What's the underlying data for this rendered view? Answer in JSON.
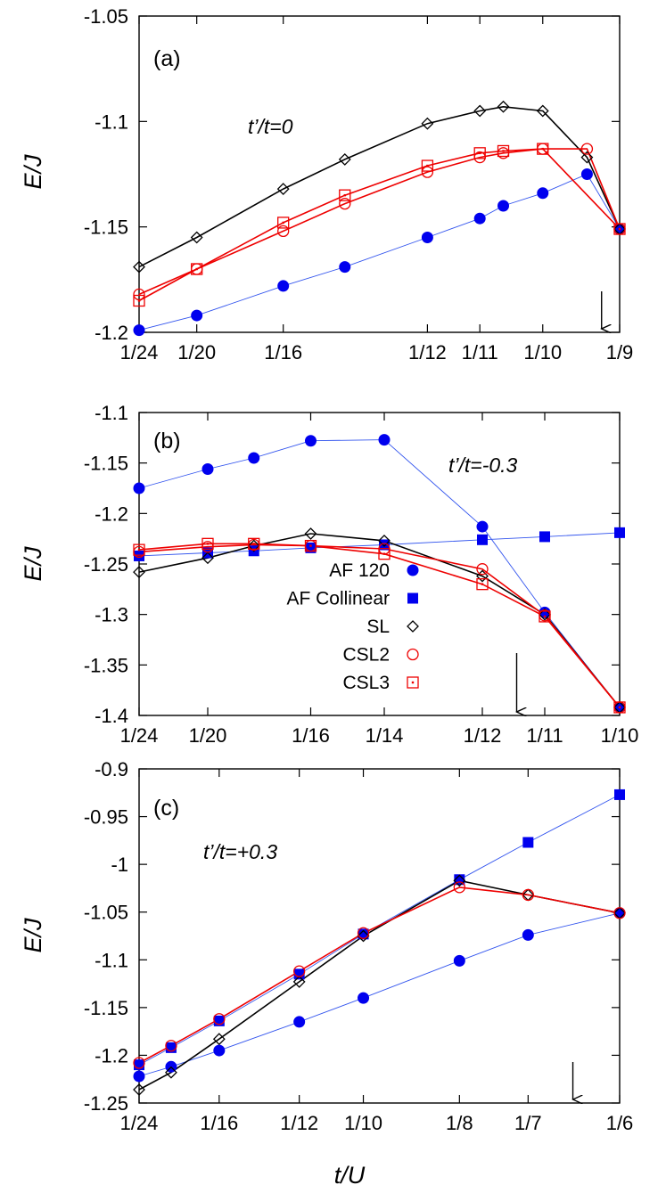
{
  "colors": {
    "af120": "#0000ee",
    "afcol": "#0000ee",
    "sl": "#000000",
    "csl2": "#ee0000",
    "csl3": "#ee0000"
  },
  "legend": [
    {
      "key": "af120",
      "label": "AF 120",
      "marker": "circle-filled"
    },
    {
      "key": "afcol",
      "label": "AF Collinear",
      "marker": "square-filled"
    },
    {
      "key": "sl",
      "label": "SL",
      "marker": "diamond-open"
    },
    {
      "key": "csl2",
      "label": "CSL2",
      "marker": "circle-open"
    },
    {
      "key": "csl3",
      "label": "CSL3",
      "marker": "square-dot"
    }
  ],
  "xlabel": "t/U",
  "chart_data": [
    {
      "type": "line",
      "panel": "(a)",
      "annotation": "t’/t=0",
      "ylabel": "E/J",
      "xlim": [
        0.041667,
        0.111111
      ],
      "ylim": [
        -1.2,
        -1.05
      ],
      "yticks": [
        "-1.2",
        "-1.15",
        "-1.1",
        "-1.05"
      ],
      "ytick_values": [
        -1.2,
        -1.15,
        -1.1,
        -1.05
      ],
      "xticks": [
        "1/24",
        "1/20",
        "1/16",
        "1/12",
        "1/11",
        "1/10",
        "1/9"
      ],
      "xtick_values": [
        0.041667,
        0.05,
        0.0625,
        0.083333,
        0.090909,
        0.1,
        0.111111
      ],
      "arrow_x": 0.1085,
      "series": [
        {
          "key": "af120",
          "x": [
            0.041667,
            0.05,
            0.0625,
            0.0714,
            0.083333,
            0.090909,
            0.0943,
            0.1,
            0.1064,
            0.111111
          ],
          "values": [
            -1.199,
            -1.192,
            -1.178,
            -1.169,
            -1.155,
            -1.146,
            -1.14,
            -1.134,
            -1.125,
            -1.151
          ]
        },
        {
          "key": "sl",
          "x": [
            0.041667,
            0.05,
            0.0625,
            0.0714,
            0.083333,
            0.090909,
            0.0943,
            0.1,
            0.1064,
            0.111111
          ],
          "values": [
            -1.169,
            -1.155,
            -1.132,
            -1.118,
            -1.101,
            -1.095,
            -1.093,
            -1.095,
            -1.117,
            -1.151
          ]
        },
        {
          "key": "csl2",
          "x": [
            0.041667,
            0.05,
            0.0625,
            0.0714,
            0.083333,
            0.090909,
            0.0943,
            0.1,
            0.1064,
            0.111111
          ],
          "values": [
            -1.182,
            -1.17,
            -1.152,
            -1.139,
            -1.124,
            -1.117,
            -1.115,
            -1.113,
            -1.113,
            -1.151
          ]
        },
        {
          "key": "csl3",
          "x": [
            0.041667,
            0.05,
            0.0625,
            0.0714,
            0.083333,
            0.090909,
            0.0943,
            0.1,
            0.111111
          ],
          "values": [
            -1.185,
            -1.17,
            -1.148,
            -1.135,
            -1.121,
            -1.115,
            -1.114,
            -1.113,
            -1.151
          ]
        }
      ]
    },
    {
      "type": "line",
      "panel": "(b)",
      "annotation": "t’/t=-0.3",
      "ylabel": "E/J",
      "xlim": [
        0.041667,
        0.1
      ],
      "ylim": [
        -1.4,
        -1.1
      ],
      "yticks": [
        "-1.4",
        "-1.35",
        "-1.3",
        "-1.25",
        "-1.2",
        "-1.15",
        "-1.1"
      ],
      "ytick_values": [
        -1.4,
        -1.35,
        -1.3,
        -1.25,
        -1.2,
        -1.15,
        -1.1
      ],
      "xticks": [
        "1/24",
        "1/20",
        "1/16",
        "1/14",
        "1/12",
        "1/11",
        "1/10"
      ],
      "xtick_values": [
        0.041667,
        0.05,
        0.0625,
        0.071429,
        0.083333,
        0.090909,
        0.1
      ],
      "arrow_x": 0.0875,
      "legend_position": "center-left",
      "series": [
        {
          "key": "af120",
          "x": [
            0.041667,
            0.05,
            0.0556,
            0.0625,
            0.071429,
            0.083333,
            0.090909,
            0.1
          ],
          "values": [
            -1.175,
            -1.156,
            -1.145,
            -1.128,
            -1.127,
            -1.213,
            -1.298,
            -1.392
          ]
        },
        {
          "key": "afcol",
          "x": [
            0.041667,
            0.05,
            0.0556,
            0.0625,
            0.071429,
            0.083333,
            0.090909,
            0.1
          ],
          "values": [
            -1.242,
            -1.239,
            -1.237,
            -1.234,
            -1.231,
            -1.226,
            -1.223,
            -1.219
          ]
        },
        {
          "key": "sl",
          "x": [
            0.041667,
            0.05,
            0.0556,
            0.0625,
            0.071429,
            0.083333,
            0.090909,
            0.1
          ],
          "values": [
            -1.258,
            -1.244,
            -1.232,
            -1.22,
            -1.227,
            -1.262,
            -1.3,
            -1.392
          ]
        },
        {
          "key": "csl2",
          "x": [
            0.041667,
            0.05,
            0.0556,
            0.0625,
            0.071429,
            0.083333,
            0.090909,
            0.1
          ],
          "values": [
            -1.238,
            -1.233,
            -1.231,
            -1.232,
            -1.235,
            -1.255,
            -1.301,
            -1.392
          ]
        },
        {
          "key": "csl3",
          "x": [
            0.041667,
            0.05,
            0.0556,
            0.0625,
            0.071429,
            0.083333,
            0.090909,
            0.1
          ],
          "values": [
            -1.236,
            -1.23,
            -1.23,
            -1.232,
            -1.24,
            -1.27,
            -1.302,
            -1.392
          ]
        }
      ]
    },
    {
      "type": "line",
      "panel": "(c)",
      "annotation": "t’/t=+0.3",
      "ylabel": "E/J",
      "xlim": [
        0.041667,
        0.166667
      ],
      "ylim": [
        -1.25,
        -0.9
      ],
      "yticks": [
        "-1.25",
        "-1.2",
        "-1.15",
        "-1.1",
        "-1.05",
        "-1",
        "-0.95",
        "-0.9"
      ],
      "ytick_values": [
        -1.25,
        -1.2,
        -1.15,
        -1.1,
        -1.05,
        -1.0,
        -0.95,
        -0.9
      ],
      "xticks": [
        "1/24",
        "1/16",
        "1/12",
        "1/10",
        "1/8",
        "1/7",
        "1/6"
      ],
      "xtick_values": [
        0.041667,
        0.0625,
        0.083333,
        0.1,
        0.125,
        0.142857,
        0.166667
      ],
      "arrow_x": 0.1545,
      "series": [
        {
          "key": "af120",
          "x": [
            0.041667,
            0.05,
            0.0625,
            0.083333,
            0.1,
            0.125,
            0.142857,
            0.166667
          ],
          "values": [
            -1.222,
            -1.212,
            -1.195,
            -1.165,
            -1.14,
            -1.101,
            -1.074,
            -1.051
          ]
        },
        {
          "key": "afcol",
          "x": [
            0.041667,
            0.05,
            0.0625,
            0.083333,
            0.1,
            0.125,
            0.142857,
            0.166667
          ],
          "values": [
            -1.21,
            -1.192,
            -1.164,
            -1.115,
            -1.073,
            -1.016,
            -0.977,
            -0.927
          ]
        },
        {
          "key": "sl",
          "x": [
            0.041667,
            0.05,
            0.0625,
            0.083333,
            0.1,
            0.125,
            0.142857,
            0.166667
          ],
          "values": [
            -1.236,
            -1.218,
            -1.183,
            -1.123,
            -1.075,
            -1.017,
            -1.032,
            -1.051
          ]
        },
        {
          "key": "csl2",
          "x": [
            0.041667,
            0.05,
            0.0625,
            0.083333,
            0.1,
            0.125,
            0.142857,
            0.166667
          ],
          "values": [
            -1.208,
            -1.19,
            -1.162,
            -1.112,
            -1.072,
            -1.024,
            -1.032,
            -1.051
          ]
        }
      ]
    }
  ]
}
